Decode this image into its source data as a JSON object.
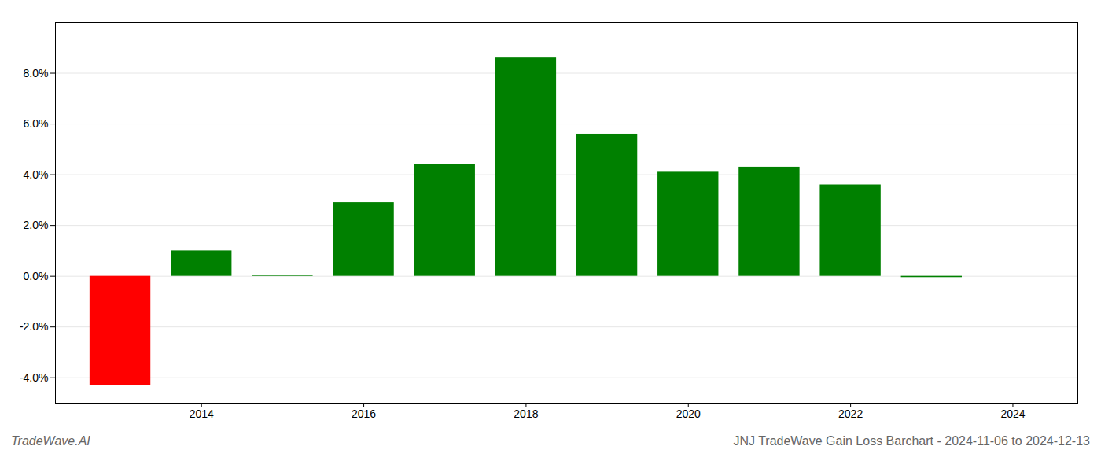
{
  "chart_data": {
    "type": "bar",
    "title": "JNJ TradeWave Gain Loss Barchart - 2024-11-06 to 2024-12-13",
    "annotations": [
      "TradeWave.AI"
    ],
    "x": [
      2013,
      2014,
      2015,
      2016,
      2017,
      2018,
      2019,
      2020,
      2021,
      2022,
      2023
    ],
    "values": [
      -0.043,
      0.01,
      0.0005,
      0.029,
      0.044,
      0.086,
      0.056,
      0.041,
      0.043,
      0.036,
      -0.0005
    ],
    "colors": [
      "#ff0000",
      "#008000",
      "#008000",
      "#008000",
      "#008000",
      "#008000",
      "#008000",
      "#008000",
      "#008000",
      "#008000",
      "#008000"
    ],
    "xlim": [
      2012.2,
      2024.8
    ],
    "xticks": [
      2014,
      2016,
      2018,
      2020,
      2022,
      2024
    ],
    "ylim": [
      -0.05,
      0.1
    ],
    "yticks": [
      {
        "value": -0.04,
        "label": "-4.0%"
      },
      {
        "value": -0.02,
        "label": "-2.0%"
      },
      {
        "value": 0.0,
        "label": "0.0%"
      },
      {
        "value": 0.02,
        "label": "2.0%"
      },
      {
        "value": 0.04,
        "label": "4.0%"
      },
      {
        "value": 0.06,
        "label": "6.0%"
      },
      {
        "value": 0.08,
        "label": "8.0%"
      }
    ],
    "grid": true
  }
}
